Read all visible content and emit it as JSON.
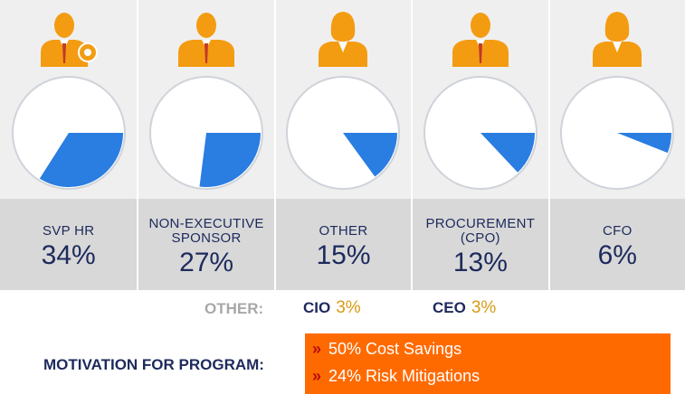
{
  "colors": {
    "icon_orange": "#f39c12",
    "pie_blue": "#2a7de1",
    "text_navy": "#1d2a5c",
    "value_gold": "#d89a16",
    "box_orange": "#ff6a00"
  },
  "chart_data": {
    "type": "pie",
    "categories": [
      "SVP HR",
      "NON-EXECUTIVE SPONSOR",
      "OTHER",
      "PROCUREMENT (CPO)",
      "CFO"
    ],
    "values": [
      34,
      27,
      15,
      13,
      6
    ],
    "value_labels": [
      "34%",
      "27%",
      "15%",
      "13%",
      "6%"
    ],
    "icons": [
      "manager-gear-icon",
      "businessman-icon",
      "businesswoman-icon",
      "businessman-icon",
      "businesswoman-icon"
    ]
  },
  "other": {
    "label": "OTHER:",
    "items": [
      {
        "name": "CIO",
        "value": "3%"
      },
      {
        "name": "CEO",
        "value": "3%"
      }
    ]
  },
  "motivation": {
    "label": "MOTIVATION FOR PROGRAM:",
    "items": [
      "50% Cost Savings",
      "24% Risk Mitigations"
    ],
    "bullet": "»"
  }
}
